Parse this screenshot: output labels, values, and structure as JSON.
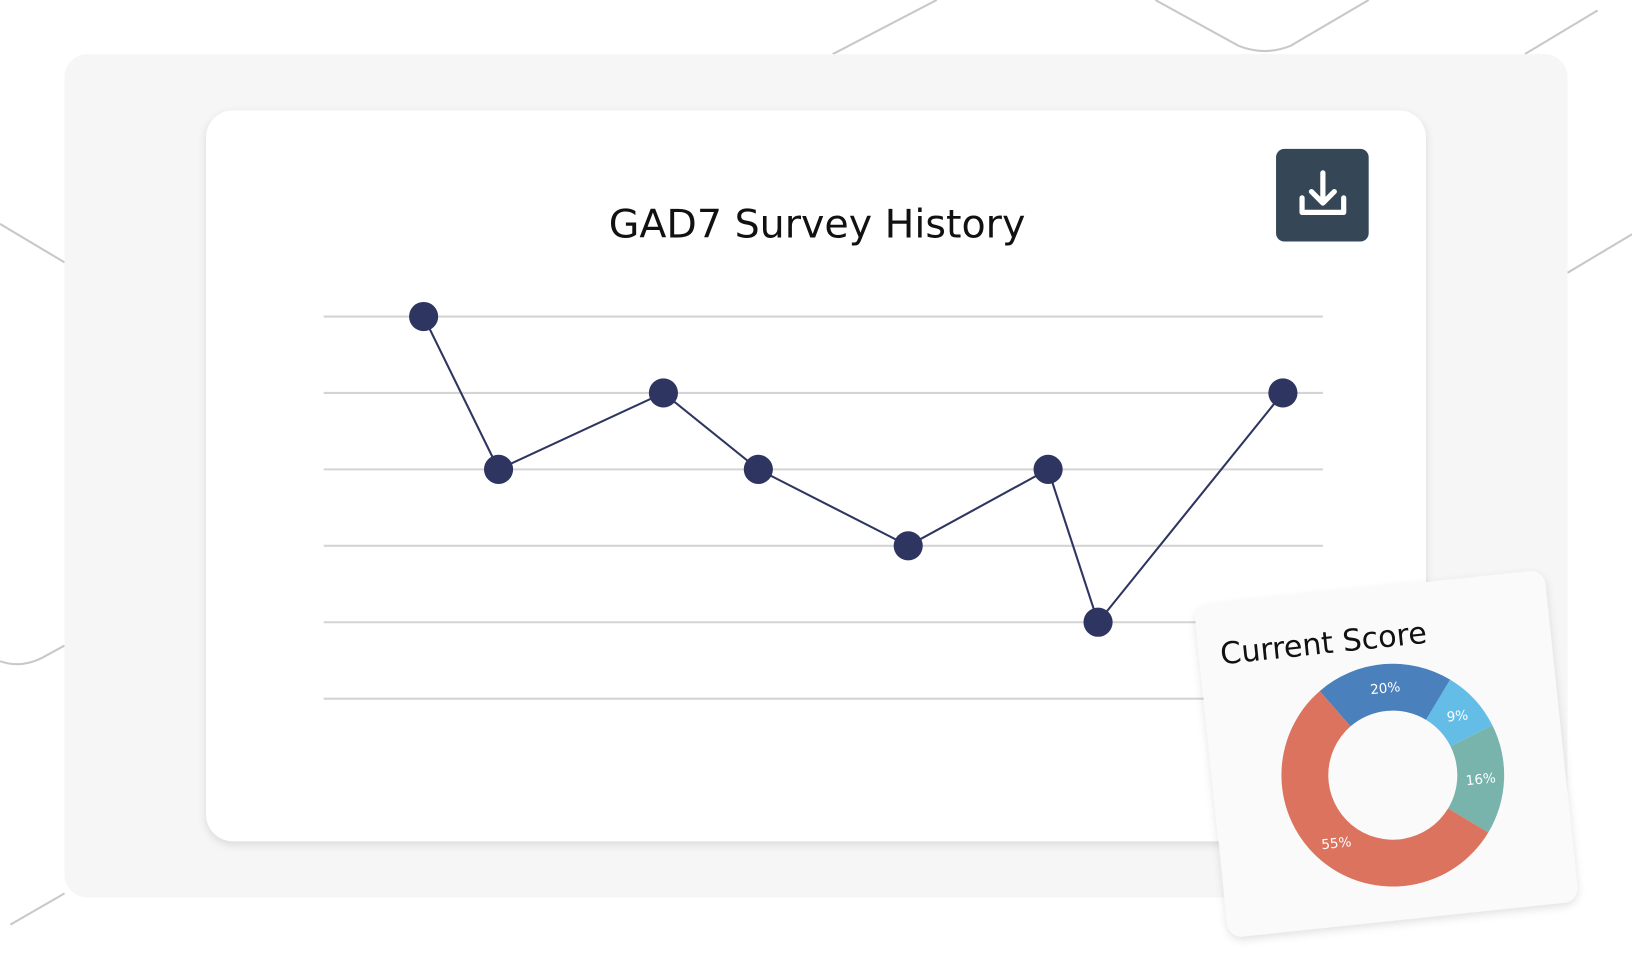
{
  "chart_data": [
    {
      "type": "line",
      "title": "GAD7 Survey History",
      "x": [
        10,
        17.5,
        34,
        43.5,
        58.5,
        72.5,
        77.5,
        96
      ],
      "values": [
        5,
        3,
        4,
        3,
        2,
        3,
        1,
        4
      ],
      "color": "#2e3560",
      "xlim": [
        0,
        100
      ],
      "ylim": [
        0,
        5
      ],
      "yticks": [
        0,
        1,
        2,
        3,
        4,
        5
      ],
      "grid": true
    },
    {
      "type": "pie",
      "title": "Current Score",
      "values": [
        20,
        9,
        16,
        55
      ],
      "value_labels": [
        "20%",
        "9%",
        "16%",
        "55%"
      ],
      "colors": [
        "#4a80bc",
        "#63bde6",
        "#78b3ac",
        "#dc735e"
      ]
    }
  ]
}
